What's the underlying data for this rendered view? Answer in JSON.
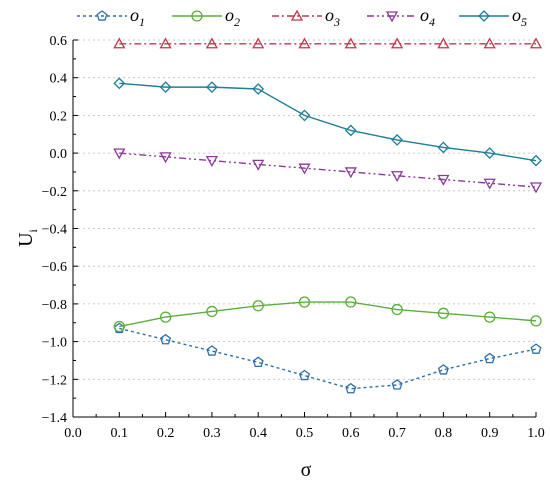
{
  "chart_data": {
    "type": "line",
    "xlabel": "σ",
    "ylabel": "U",
    "ylabel_sub": "i",
    "xlim": [
      0.0,
      1.0
    ],
    "ylim": [
      -1.4,
      0.6
    ],
    "x_ticks": [
      "0.0",
      "0.1",
      "0.2",
      "0.3",
      "0.4",
      "0.5",
      "0.6",
      "0.7",
      "0.8",
      "0.9",
      "1.0"
    ],
    "y_ticks": [
      "0.6",
      "0.4",
      "0.2",
      "0.0",
      "−0.2",
      "−0.4",
      "−0.6",
      "−0.8",
      "−1.0",
      "−1.2",
      "−1.4"
    ],
    "x_tick_values": [
      0.0,
      0.1,
      0.2,
      0.3,
      0.4,
      0.5,
      0.6,
      0.7,
      0.8,
      0.9,
      1.0
    ],
    "y_tick_values": [
      0.6,
      0.4,
      0.2,
      0.0,
      -0.2,
      -0.4,
      -0.6,
      -0.8,
      -1.0,
      -1.2,
      -1.4
    ],
    "grid": "horizontal dotted",
    "legend_position": "top",
    "x": [
      0.1,
      0.2,
      0.3,
      0.4,
      0.5,
      0.6,
      0.7,
      0.8,
      0.9,
      1.0
    ],
    "series": [
      {
        "name": "o",
        "sub": "1",
        "color": "#2f6fa8",
        "dash": "3 3",
        "marker": "pentagon",
        "values": [
          -0.93,
          -0.99,
          -1.05,
          -1.11,
          -1.18,
          -1.25,
          -1.23,
          -1.15,
          -1.09,
          -1.04
        ]
      },
      {
        "name": "o",
        "sub": "2",
        "color": "#5cae3c",
        "dash": "",
        "marker": "circle",
        "values": [
          -0.92,
          -0.87,
          -0.84,
          -0.81,
          -0.79,
          -0.79,
          -0.83,
          -0.85,
          -0.87,
          -0.89
        ]
      },
      {
        "name": "o",
        "sub": "3",
        "color": "#c0394d",
        "dash": "7 3 2 3",
        "marker": "triangle-up",
        "values": [
          0.58,
          0.58,
          0.58,
          0.58,
          0.58,
          0.58,
          0.58,
          0.58,
          0.58,
          0.58
        ]
      },
      {
        "name": "o",
        "sub": "4",
        "color": "#8a3a97",
        "dash": "7 3 2 3 2 3",
        "marker": "triangle-down",
        "values": [
          0.0,
          -0.02,
          -0.04,
          -0.06,
          -0.08,
          -0.1,
          -0.12,
          -0.14,
          -0.16,
          -0.18
        ]
      },
      {
        "name": "o",
        "sub": "5",
        "color": "#1e7f95",
        "dash": "",
        "marker": "diamond",
        "values": [
          0.37,
          0.35,
          0.35,
          0.34,
          0.2,
          0.12,
          0.07,
          0.03,
          0.0,
          -0.04
        ]
      }
    ]
  }
}
